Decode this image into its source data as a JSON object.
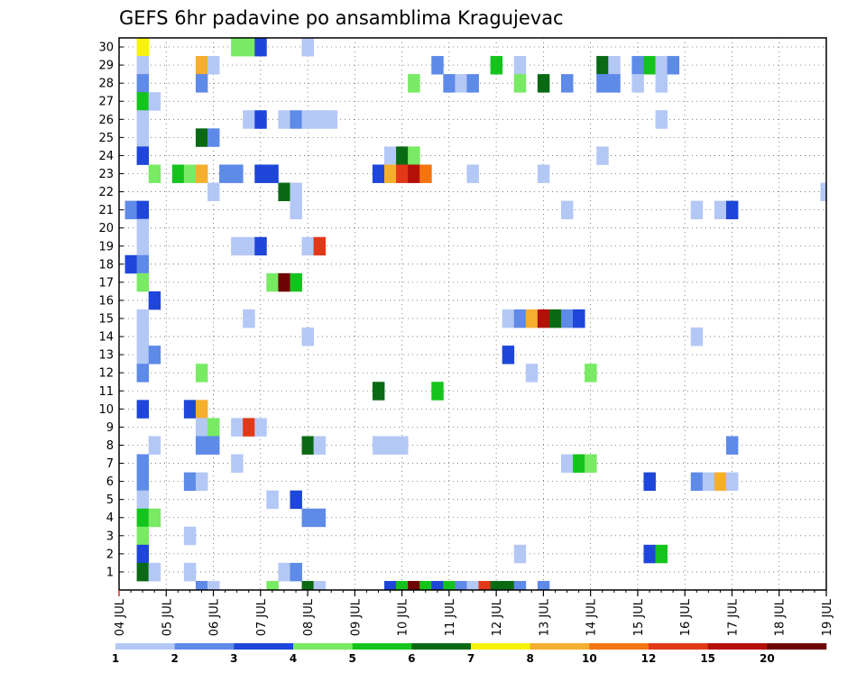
{
  "chart_data": {
    "type": "heatmap",
    "title": "GEFS 6hr padavine po ansamblima Kragujevac",
    "xlabel": "",
    "ylabel": "",
    "x_tick_labels": [
      "04 JUL",
      "05 JUL",
      "06 JUL",
      "07 JUL",
      "08 JUL",
      "09 JUL",
      "10 JUL",
      "11 JUL",
      "12 JUL",
      "13 JUL",
      "14 JUL",
      "15 JUL",
      "16 JUL",
      "17 JUL",
      "18 JUL",
      "19 JUL"
    ],
    "x_range_days": [
      0,
      15
    ],
    "y_tick_labels": [
      "1",
      "2",
      "3",
      "4",
      "5",
      "6",
      "7",
      "8",
      "9",
      "10",
      "11",
      "12",
      "13",
      "14",
      "15",
      "16",
      "17",
      "18",
      "19",
      "20",
      "21",
      "22",
      "23",
      "24",
      "25",
      "26",
      "27",
      "28",
      "29",
      "30"
    ],
    "y_range_members": [
      0,
      30
    ],
    "grid": true,
    "grid_style": "dotted",
    "colorbar": {
      "placement": "bottom",
      "thresholds": [
        "1",
        "2",
        "3",
        "4",
        "5",
        "6",
        "7",
        "8",
        "10",
        "12",
        "15",
        "20"
      ],
      "colors": [
        "#b4c8f6",
        "#5e8ae8",
        "#1e46d8",
        "#78ea64",
        "#14c41c",
        "#0a6a14",
        "#f6f20a",
        "#f6ae2e",
        "#f47410",
        "#e23818",
        "#b41008",
        "#6e0404"
      ]
    },
    "cells": [
      [
        30,
        2,
        "#f6f20a"
      ],
      [
        30,
        10,
        "#78ea64"
      ],
      [
        30,
        11,
        "#78ea64"
      ],
      [
        30,
        12,
        "#1e46d8"
      ],
      [
        30,
        16,
        "#b4c8f6"
      ],
      [
        29,
        2,
        "#b4c8f6"
      ],
      [
        29,
        7,
        "#f6ae2e"
      ],
      [
        29,
        8,
        "#b4c8f6"
      ],
      [
        29,
        27,
        "#5e8ae8"
      ],
      [
        29,
        32,
        "#14c41c"
      ],
      [
        29,
        34,
        "#b4c8f6"
      ],
      [
        29,
        41,
        "#0a6a14"
      ],
      [
        29,
        42,
        "#b4c8f6"
      ],
      [
        29,
        44,
        "#5e8ae8"
      ],
      [
        29,
        45,
        "#14c41c"
      ],
      [
        29,
        46,
        "#b4c8f6"
      ],
      [
        29,
        47,
        "#5e8ae8"
      ],
      [
        28,
        2,
        "#5e8ae8"
      ],
      [
        28,
        7,
        "#5e8ae8"
      ],
      [
        28,
        25,
        "#78ea64"
      ],
      [
        28,
        28,
        "#5e8ae8"
      ],
      [
        28,
        29,
        "#b4c8f6"
      ],
      [
        28,
        30,
        "#5e8ae8"
      ],
      [
        28,
        34,
        "#78ea64"
      ],
      [
        28,
        36,
        "#0a6a14"
      ],
      [
        28,
        38,
        "#5e8ae8"
      ],
      [
        28,
        41,
        "#5e8ae8"
      ],
      [
        28,
        42,
        "#5e8ae8"
      ],
      [
        28,
        44,
        "#b4c8f6"
      ],
      [
        28,
        46,
        "#b4c8f6"
      ],
      [
        27,
        2,
        "#14c41c"
      ],
      [
        27,
        3,
        "#b4c8f6"
      ],
      [
        26,
        2,
        "#b4c8f6"
      ],
      [
        26,
        11,
        "#b4c8f6"
      ],
      [
        26,
        12,
        "#1e46d8"
      ],
      [
        26,
        14,
        "#b4c8f6"
      ],
      [
        26,
        15,
        "#5e8ae8"
      ],
      [
        26,
        16,
        "#b4c8f6"
      ],
      [
        26,
        17,
        "#b4c8f6"
      ],
      [
        26,
        18,
        "#b4c8f6"
      ],
      [
        26,
        46,
        "#b4c8f6"
      ],
      [
        25,
        2,
        "#b4c8f6"
      ],
      [
        25,
        7,
        "#0a6a14"
      ],
      [
        25,
        8,
        "#5e8ae8"
      ],
      [
        24,
        2,
        "#1e46d8"
      ],
      [
        24,
        23,
        "#b4c8f6"
      ],
      [
        24,
        24,
        "#0a6a14"
      ],
      [
        24,
        25,
        "#78ea64"
      ],
      [
        24,
        41,
        "#b4c8f6"
      ],
      [
        23,
        3,
        "#78ea64"
      ],
      [
        23,
        5,
        "#14c41c"
      ],
      [
        23,
        6,
        "#78ea64"
      ],
      [
        23,
        7,
        "#f6ae2e"
      ],
      [
        23,
        9,
        "#5e8ae8"
      ],
      [
        23,
        10,
        "#5e8ae8"
      ],
      [
        23,
        12,
        "#1e46d8"
      ],
      [
        23,
        13,
        "#1e46d8"
      ],
      [
        23,
        22,
        "#1e46d8"
      ],
      [
        23,
        23,
        "#f6ae2e"
      ],
      [
        23,
        24,
        "#e23818"
      ],
      [
        23,
        25,
        "#b41008"
      ],
      [
        23,
        26,
        "#f47410"
      ],
      [
        23,
        30,
        "#b4c8f6"
      ],
      [
        23,
        36,
        "#b4c8f6"
      ],
      [
        22,
        8,
        "#b4c8f6"
      ],
      [
        22,
        14,
        "#0a6a14"
      ],
      [
        22,
        15,
        "#b4c8f6"
      ],
      [
        22,
        60,
        "#b4c8f6"
      ],
      [
        21,
        1,
        "#5e8ae8"
      ],
      [
        21,
        2,
        "#1e46d8"
      ],
      [
        21,
        15,
        "#b4c8f6"
      ],
      [
        21,
        38,
        "#b4c8f6"
      ],
      [
        21,
        49,
        "#b4c8f6"
      ],
      [
        21,
        51,
        "#b4c8f6"
      ],
      [
        21,
        52,
        "#1e46d8"
      ],
      [
        20,
        2,
        "#b4c8f6"
      ],
      [
        19,
        2,
        "#b4c8f6"
      ],
      [
        19,
        10,
        "#b4c8f6"
      ],
      [
        19,
        11,
        "#b4c8f6"
      ],
      [
        19,
        12,
        "#1e46d8"
      ],
      [
        19,
        16,
        "#b4c8f6"
      ],
      [
        19,
        17,
        "#e23818"
      ],
      [
        18,
        1,
        "#1e46d8"
      ],
      [
        18,
        2,
        "#5e8ae8"
      ],
      [
        17,
        2,
        "#78ea64"
      ],
      [
        17,
        13,
        "#78ea64"
      ],
      [
        17,
        14,
        "#6e0404"
      ],
      [
        17,
        15,
        "#14c41c"
      ],
      [
        16,
        3,
        "#1e46d8"
      ],
      [
        15,
        2,
        "#b4c8f6"
      ],
      [
        15,
        11,
        "#b4c8f6"
      ],
      [
        15,
        33,
        "#b4c8f6"
      ],
      [
        15,
        34,
        "#5e8ae8"
      ],
      [
        15,
        35,
        "#f6ae2e"
      ],
      [
        15,
        36,
        "#b41008"
      ],
      [
        15,
        37,
        "#0a6a14"
      ],
      [
        15,
        38,
        "#5e8ae8"
      ],
      [
        15,
        39,
        "#1e46d8"
      ],
      [
        14,
        2,
        "#b4c8f6"
      ],
      [
        14,
        16,
        "#b4c8f6"
      ],
      [
        14,
        49,
        "#b4c8f6"
      ],
      [
        13,
        2,
        "#b4c8f6"
      ],
      [
        13,
        3,
        "#5e8ae8"
      ],
      [
        13,
        33,
        "#1e46d8"
      ],
      [
        12,
        2,
        "#5e8ae8"
      ],
      [
        12,
        7,
        "#78ea64"
      ],
      [
        12,
        35,
        "#b4c8f6"
      ],
      [
        12,
        40,
        "#78ea64"
      ],
      [
        11,
        22,
        "#0a6a14"
      ],
      [
        11,
        27,
        "#14c41c"
      ],
      [
        10,
        2,
        "#1e46d8"
      ],
      [
        10,
        6,
        "#1e46d8"
      ],
      [
        10,
        7,
        "#f6ae2e"
      ],
      [
        9,
        7,
        "#b4c8f6"
      ],
      [
        9,
        8,
        "#78ea64"
      ],
      [
        9,
        10,
        "#b4c8f6"
      ],
      [
        9,
        11,
        "#e23818"
      ],
      [
        9,
        12,
        "#b4c8f6"
      ],
      [
        8,
        3,
        "#b4c8f6"
      ],
      [
        8,
        7,
        "#5e8ae8"
      ],
      [
        8,
        8,
        "#5e8ae8"
      ],
      [
        8,
        16,
        "#0a6a14"
      ],
      [
        8,
        17,
        "#b4c8f6"
      ],
      [
        8,
        22,
        "#b4c8f6"
      ],
      [
        8,
        23,
        "#b4c8f6"
      ],
      [
        8,
        24,
        "#b4c8f6"
      ],
      [
        8,
        52,
        "#5e8ae8"
      ],
      [
        7,
        2,
        "#5e8ae8"
      ],
      [
        7,
        10,
        "#b4c8f6"
      ],
      [
        7,
        38,
        "#b4c8f6"
      ],
      [
        7,
        39,
        "#14c41c"
      ],
      [
        7,
        40,
        "#78ea64"
      ],
      [
        6,
        2,
        "#5e8ae8"
      ],
      [
        6,
        6,
        "#5e8ae8"
      ],
      [
        6,
        7,
        "#b4c8f6"
      ],
      [
        6,
        45,
        "#1e46d8"
      ],
      [
        6,
        49,
        "#5e8ae8"
      ],
      [
        6,
        50,
        "#b4c8f6"
      ],
      [
        6,
        51,
        "#f6ae2e"
      ],
      [
        6,
        52,
        "#b4c8f6"
      ],
      [
        5,
        2,
        "#b4c8f6"
      ],
      [
        5,
        13,
        "#b4c8f6"
      ],
      [
        5,
        15,
        "#1e46d8"
      ],
      [
        4,
        2,
        "#14c41c"
      ],
      [
        4,
        3,
        "#78ea64"
      ],
      [
        4,
        16,
        "#5e8ae8"
      ],
      [
        4,
        17,
        "#5e8ae8"
      ],
      [
        3,
        2,
        "#78ea64"
      ],
      [
        3,
        6,
        "#b4c8f6"
      ],
      [
        2,
        2,
        "#1e46d8"
      ],
      [
        2,
        34,
        "#b4c8f6"
      ],
      [
        2,
        45,
        "#1e46d8"
      ],
      [
        2,
        46,
        "#14c41c"
      ],
      [
        1,
        2,
        "#0a6a14"
      ],
      [
        1,
        3,
        "#b4c8f6"
      ],
      [
        1,
        6,
        "#b4c8f6"
      ],
      [
        1,
        14,
        "#b4c8f6"
      ],
      [
        1,
        15,
        "#5e8ae8"
      ],
      [
        0,
        7,
        "#5e8ae8"
      ],
      [
        0,
        8,
        "#b4c8f6"
      ],
      [
        0,
        13,
        "#78ea64"
      ],
      [
        0,
        16,
        "#0a6a14"
      ],
      [
        0,
        17,
        "#b4c8f6"
      ],
      [
        0,
        23,
        "#1e46d8"
      ],
      [
        0,
        24,
        "#14c41c"
      ],
      [
        0,
        25,
        "#6e0404"
      ],
      [
        0,
        26,
        "#14c41c"
      ],
      [
        0,
        27,
        "#1e46d8"
      ],
      [
        0,
        28,
        "#14c41c"
      ],
      [
        0,
        29,
        "#5e8ae8"
      ],
      [
        0,
        30,
        "#b4c8f6"
      ],
      [
        0,
        31,
        "#e23818"
      ],
      [
        0,
        32,
        "#0a6a14"
      ],
      [
        0,
        33,
        "#0a6a14"
      ],
      [
        0,
        34,
        "#5e8ae8"
      ],
      [
        0,
        36,
        "#5e8ae8"
      ]
    ]
  }
}
